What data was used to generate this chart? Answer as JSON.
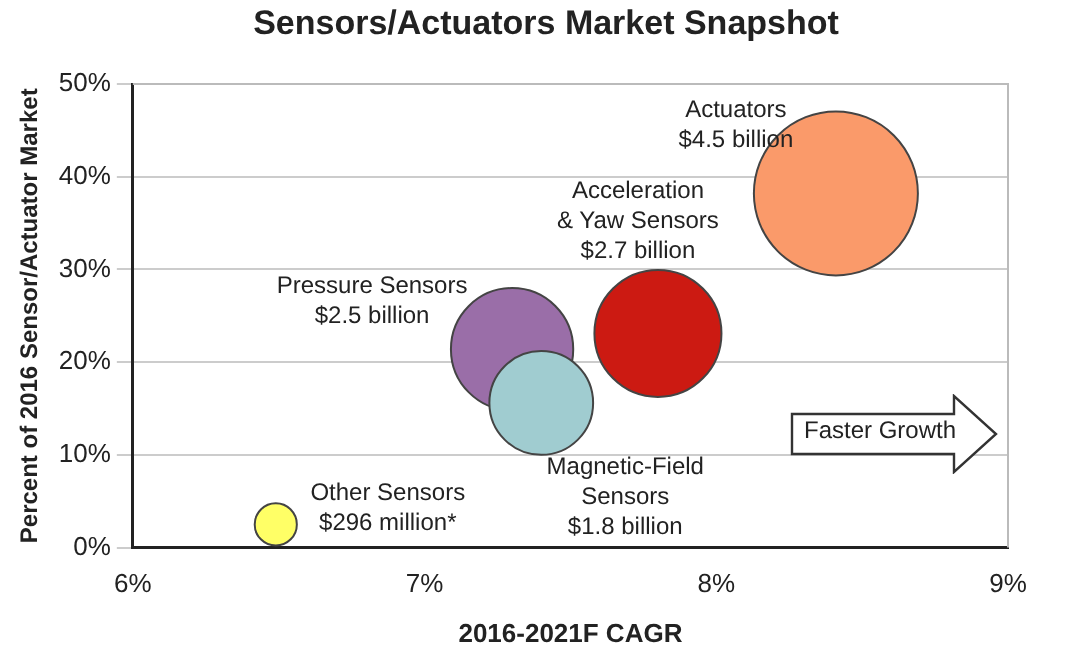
{
  "chart_data": {
    "type": "bubble",
    "title": "Sensors/Actuators Market Snapshot",
    "xlabel": "2016-2021F CAGR",
    "ylabel": "Percent of 2016 Sensor/Actuator Market",
    "x": [
      8.41,
      7.8,
      7.3,
      7.4,
      6.49
    ],
    "series": [
      {
        "colors": [
          "#fa9a6a",
          "#cc1a12",
          "#9a6ea8",
          "#a0ccd0",
          "#ffff66"
        ],
        "values": [
          38.2,
          23.1,
          21.4,
          15.6,
          2.5
        ],
        "sizes": [
          1,
          0.6,
          0.556,
          0.4,
          0.066
        ]
      }
    ],
    "xlim": [
      6,
      9
    ],
    "xticks": [
      {
        "value": 6,
        "label": "6%"
      },
      {
        "value": 7,
        "label": "7%"
      },
      {
        "value": 8,
        "label": "8%"
      },
      {
        "value": 9,
        "label": "9%"
      }
    ],
    "ylim": [
      0,
      50
    ],
    "yticks": [
      {
        "value": 0,
        "label": "0%"
      },
      {
        "value": 10,
        "label": "10%"
      },
      {
        "value": 20,
        "label": "20%"
      },
      {
        "value": 30,
        "label": "30%"
      },
      {
        "value": 40,
        "label": "40%"
      },
      {
        "value": 50,
        "label": "50%"
      }
    ],
    "grid": "y",
    "legend": false,
    "annotations": [
      {
        "text": "Actuators\n$4.5 billion",
        "x": 8.41,
        "y": 38.2
      },
      {
        "text": "Acceleration\n& Yaw Sensors\n$2.7 billion",
        "x": 7.8,
        "y": 23.1
      },
      {
        "text": "Pressure Sensors\n$2.5 billion",
        "x": 7.3,
        "y": 21.4
      },
      {
        "text": "Magnetic-Field\nSensors\n$1.8 billion",
        "x": 7.4,
        "y": 15.6
      },
      {
        "text": "Other Sensors\n$296 million*",
        "x": 6.49,
        "y": 2.5
      },
      "Faster Growth"
    ]
  }
}
